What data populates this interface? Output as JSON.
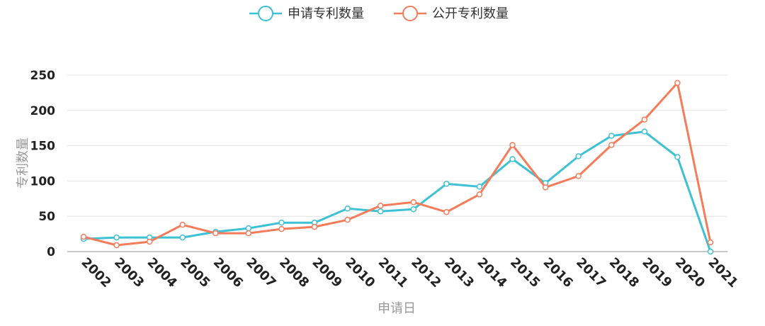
{
  "chart_data": {
    "type": "line",
    "title": "",
    "xlabel": "申请日",
    "ylabel": "专利数量",
    "ylim": [
      0,
      250
    ],
    "yticks": [
      0,
      50,
      100,
      150,
      200,
      250
    ],
    "grid": true,
    "legend_position": "top-center",
    "categories": [
      "2002",
      "2003",
      "2004",
      "2005",
      "2006",
      "2007",
      "2008",
      "2009",
      "2010",
      "2011",
      "2012",
      "2013",
      "2014",
      "2015",
      "2016",
      "2017",
      "2018",
      "2019",
      "2020",
      "2021"
    ],
    "series": [
      {
        "name": "申请专利数量",
        "color": "#3ec1d3",
        "values": [
          18,
          20,
          20,
          20,
          28,
          33,
          41,
          41,
          61,
          57,
          60,
          96,
          92,
          131,
          97,
          135,
          164,
          170,
          134,
          0
        ]
      },
      {
        "name": "公开专利数量",
        "color": "#f47c5a",
        "values": [
          21,
          9,
          14,
          38,
          26,
          26,
          32,
          35,
          45,
          65,
          70,
          56,
          81,
          151,
          91,
          107,
          151,
          187,
          239,
          13
        ]
      }
    ]
  }
}
